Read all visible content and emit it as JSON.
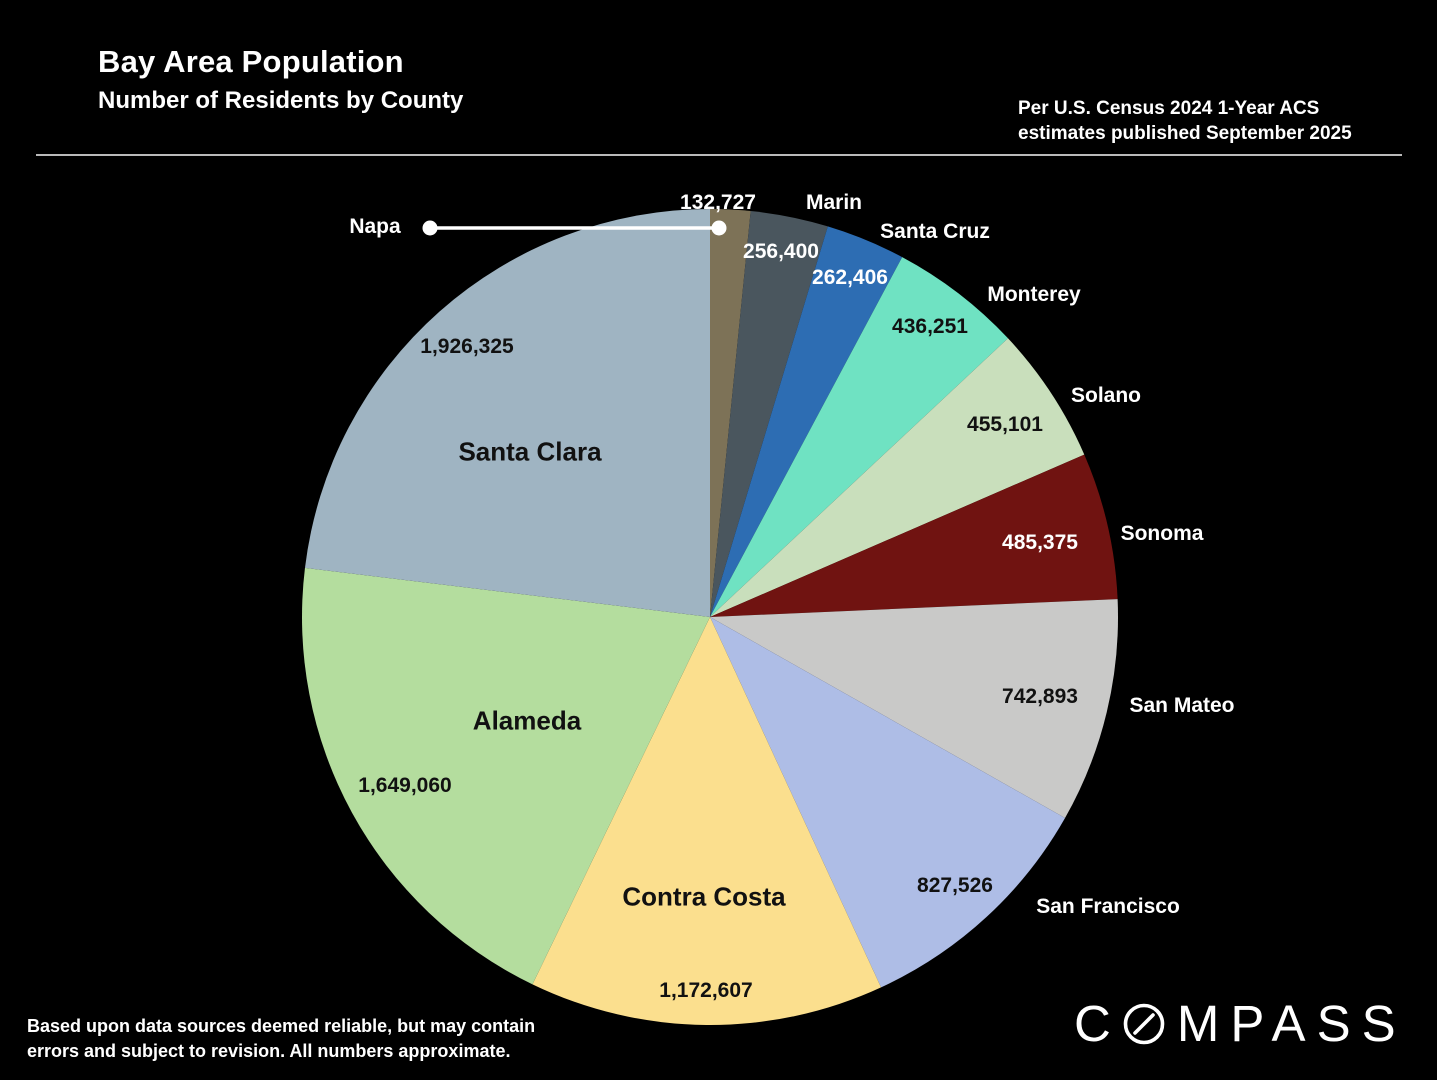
{
  "header": {
    "title": "Bay Area Population",
    "subtitle": "Number of Residents by County",
    "source_line1": "Per U.S. Census 2024 1-Year ACS",
    "source_line2": "estimates published September 2025"
  },
  "footer": {
    "line1": "Based upon data sources deemed reliable, but may contain",
    "line2": "errors and subject to revision. All numbers  approximate."
  },
  "logo": {
    "text": "COMPASS"
  },
  "colors": {
    "background": "#000000",
    "text_light": "#ffffff",
    "text_dark": "#111111",
    "rule": "#b9b9b9"
  },
  "chart_data": {
    "type": "pie",
    "title": "Bay Area Population",
    "subtitle": "Number of Residents by County",
    "start_angle_deg": 0,
    "direction": "clockwise",
    "legend_position": "none",
    "slices": [
      {
        "name": "Napa",
        "value": 132727,
        "color": "#7d7257",
        "value_label": "132,727"
      },
      {
        "name": "Marin",
        "value": 256400,
        "color": "#4a565e",
        "value_label": "256,400"
      },
      {
        "name": "Santa Cruz",
        "value": 262406,
        "color": "#2d6db3",
        "value_label": "262,406"
      },
      {
        "name": "Monterey",
        "value": 436251,
        "color": "#6fe2c2",
        "value_label": "436,251"
      },
      {
        "name": "Solano",
        "value": 455101,
        "color": "#c9dfbc",
        "value_label": "455,101"
      },
      {
        "name": "Sonoma",
        "value": 485375,
        "color": "#701311",
        "value_label": "485,375"
      },
      {
        "name": "San Mateo",
        "value": 742893,
        "color": "#c9c9c8",
        "value_label": "742,893"
      },
      {
        "name": "San Francisco",
        "value": 827526,
        "color": "#aebde6",
        "value_label": "827,526"
      },
      {
        "name": "Contra Costa",
        "value": 1172607,
        "color": "#fbdf8e",
        "value_label": "1,172,607"
      },
      {
        "name": "Alameda",
        "value": 1649060,
        "color": "#b4dd9e",
        "value_label": "1,649,060"
      },
      {
        "name": "Santa Clara",
        "value": 1926325,
        "color": "#9fb4c2",
        "value_label": "1,926,325"
      }
    ]
  }
}
